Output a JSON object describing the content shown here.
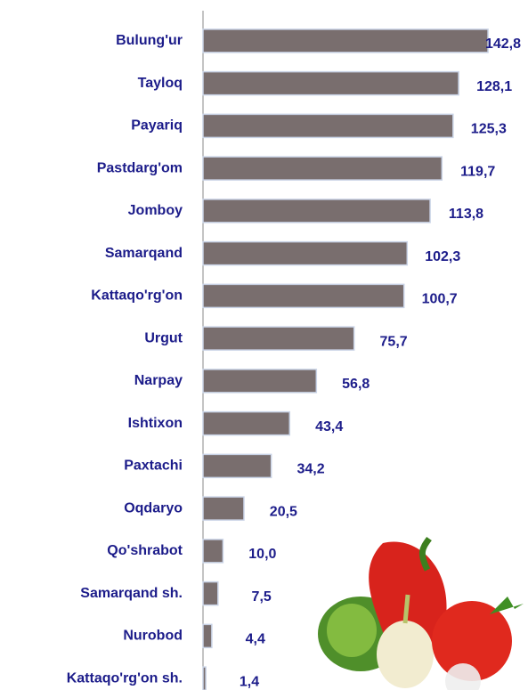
{
  "chart_data": {
    "type": "bar",
    "orientation": "horizontal",
    "categories": [
      "Bulung'ur",
      "Tayloq",
      "Payariq",
      "Pastdarg'om",
      "Jomboy",
      "Samarqand",
      "Kattaqo'rg'on",
      "Urgut",
      "Narpay",
      "Ishtixon",
      "Paxtachi",
      "Oqdaryo",
      "Qo'shrabot",
      "Samarqand sh.",
      "Nurobod",
      "Kattaqo'rg'on sh."
    ],
    "values": [
      142.8,
      128.1,
      125.3,
      119.7,
      113.8,
      102.3,
      100.7,
      75.7,
      56.8,
      43.4,
      34.2,
      20.5,
      10.0,
      7.5,
      4.4,
      1.4
    ],
    "value_labels": [
      "142,8",
      "128,1",
      "125,3",
      "119,7",
      "113,8",
      "102,3",
      "100,7",
      "75,7",
      "56,8",
      "43,4",
      "34,2",
      "20,5",
      "10,0",
      "7,5",
      "4,4",
      "1,4"
    ],
    "color": "#796e6e",
    "xlim": [
      0,
      145
    ]
  }
}
